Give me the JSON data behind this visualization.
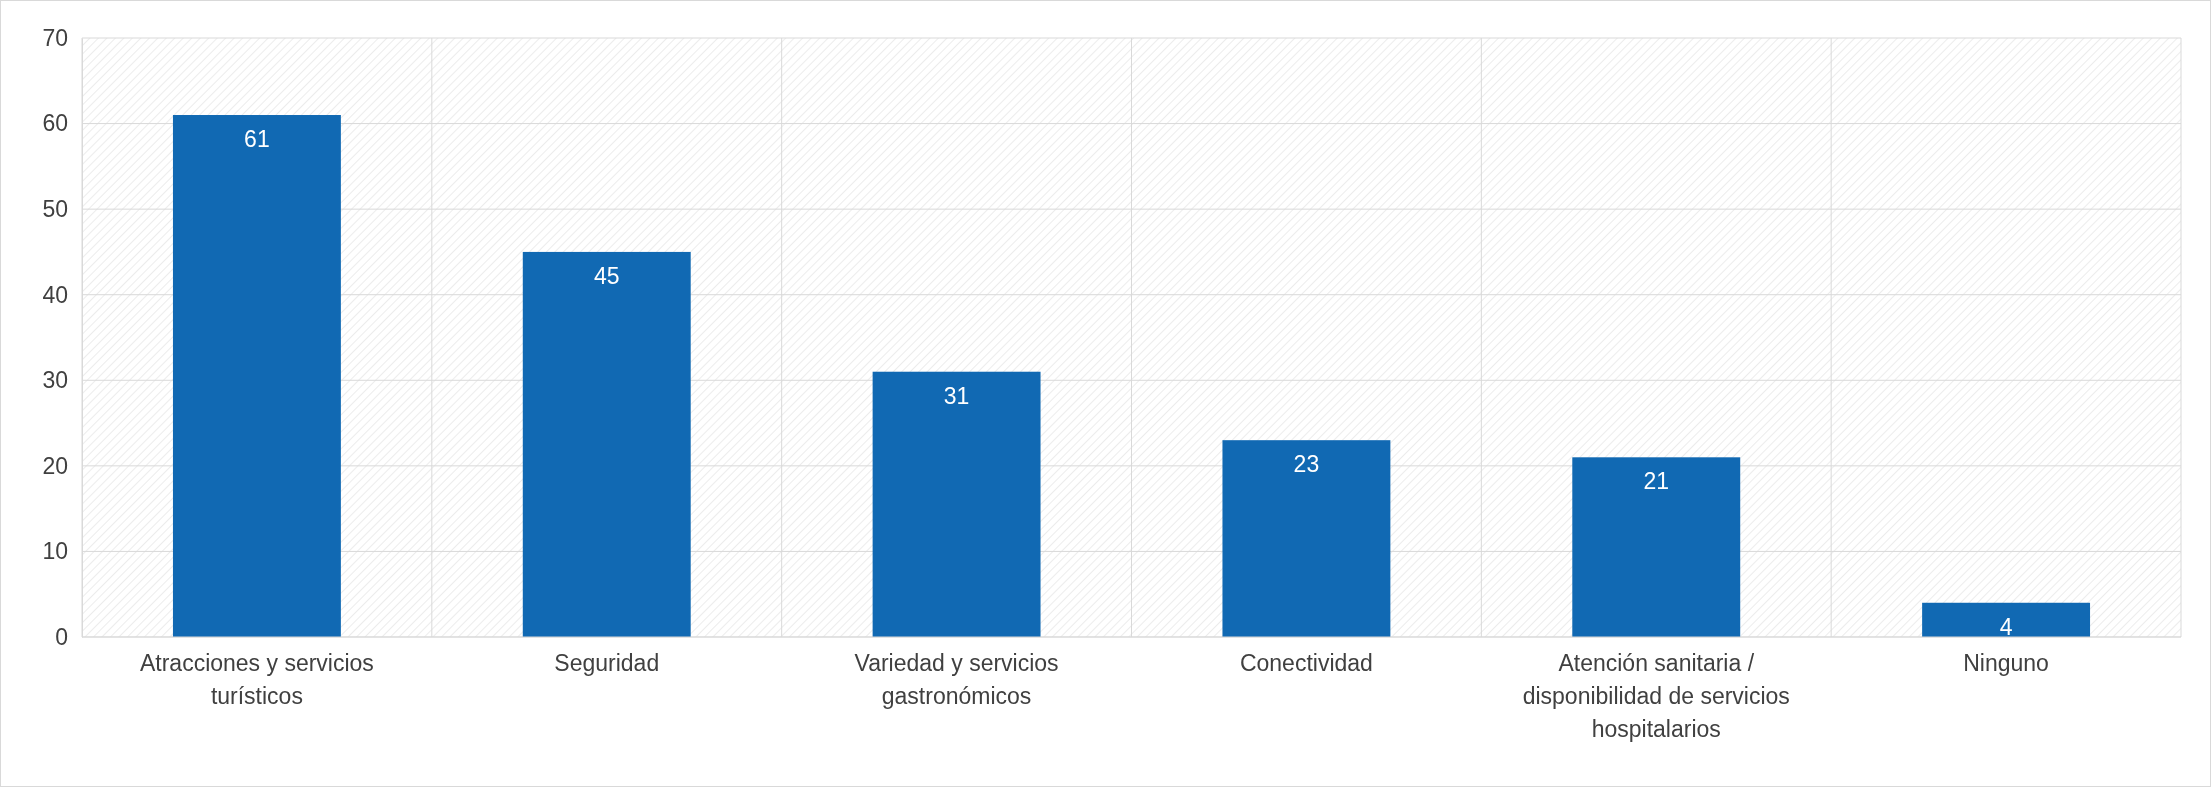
{
  "chart_data": {
    "type": "bar",
    "categories": [
      "Atracciones y servicios turísticos",
      "Seguridad",
      "Variedad y servicios gastronómicos",
      "Conectividad",
      "Atención sanitaria / disponibilidad de servicios hospitalarios",
      "Ninguno"
    ],
    "values": [
      61,
      45,
      31,
      23,
      21,
      4
    ],
    "color": "#1169b3",
    "ylim": [
      0,
      70
    ],
    "yticks": [
      0,
      10,
      20,
      30,
      40,
      50,
      60,
      70
    ],
    "grid": true,
    "data_labels": true
  }
}
